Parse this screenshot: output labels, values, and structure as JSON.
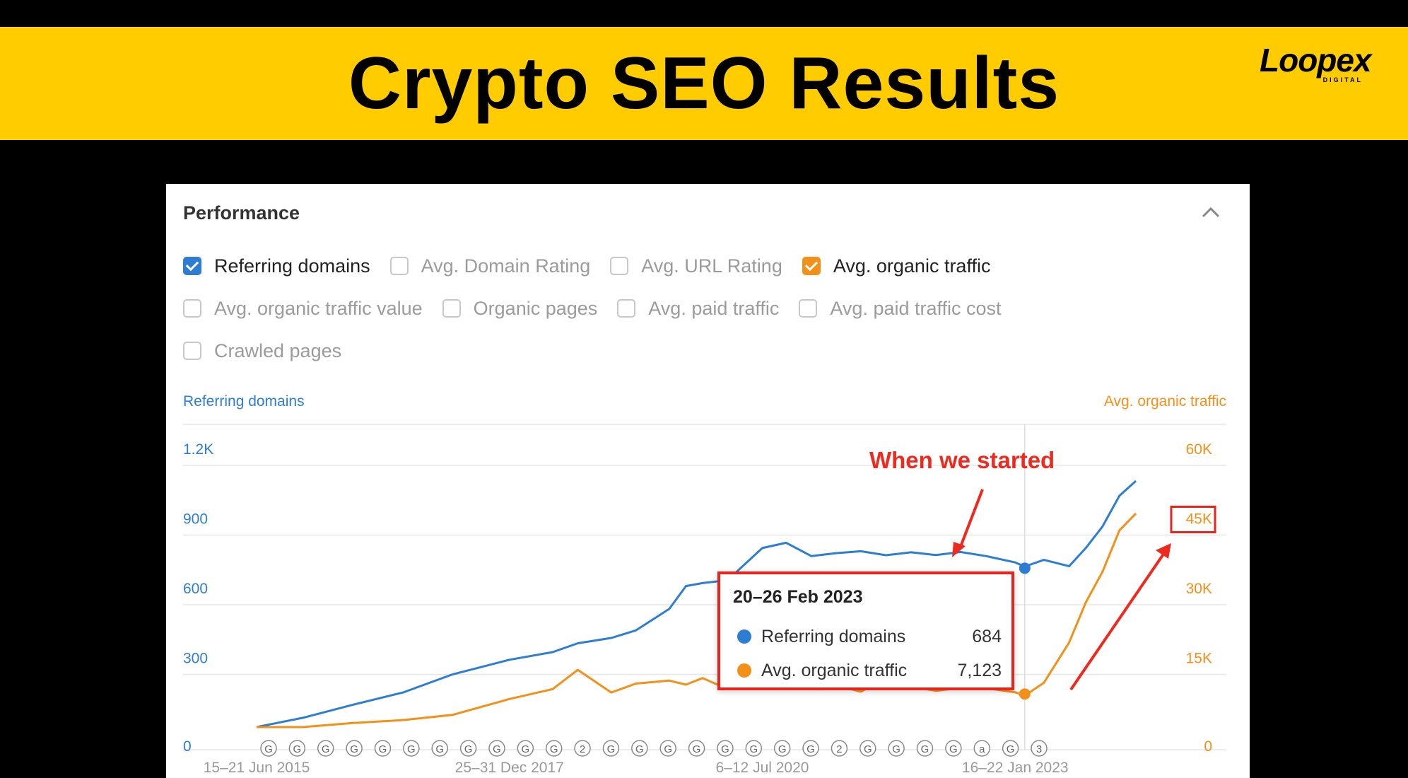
{
  "banner": {
    "title": "Crypto SEO Results",
    "logo_text": "Loopex",
    "logo_sub": "DIGITAL",
    "background": "#ffcc00"
  },
  "card": {
    "title": "Performance",
    "collapse_icon": "chevron-up-icon"
  },
  "filters": [
    [
      {
        "label": "Referring domains",
        "checked": true,
        "color": "#2d7dd2"
      },
      {
        "label": "Avg. Domain Rating",
        "checked": false
      },
      {
        "label": "Avg. URL Rating",
        "checked": false
      },
      {
        "label": "Avg. organic traffic",
        "checked": true,
        "color": "#f39019"
      }
    ],
    [
      {
        "label": "Avg. organic traffic value",
        "checked": false
      },
      {
        "label": "Organic pages",
        "checked": false
      },
      {
        "label": "Avg. paid traffic",
        "checked": false
      },
      {
        "label": "Avg. paid traffic cost",
        "checked": false
      }
    ],
    [
      {
        "label": "Crawled pages",
        "checked": false
      }
    ]
  ],
  "chart_data": {
    "type": "line",
    "grid": true,
    "x": [
      "2015-06-15",
      "2015-12-01",
      "2016-06-01",
      "2016-12-01",
      "2017-06-01",
      "2017-12-25",
      "2018-06-01",
      "2018-09-01",
      "2019-01-01",
      "2019-04-01",
      "2019-08-01",
      "2019-10-01",
      "2019-12-01",
      "2020-03-01",
      "2020-07-06",
      "2020-10-01",
      "2021-01-01",
      "2021-04-01",
      "2021-07-01",
      "2021-10-01",
      "2022-01-01",
      "2022-04-01",
      "2022-07-01",
      "2022-10-01",
      "2023-01-16",
      "2023-02-20",
      "2023-05-01",
      "2023-08-01",
      "2023-10-01",
      "2023-12-01",
      "2024-02-01",
      "2024-04-01"
    ],
    "xticks": [
      "15–21 Jun 2015",
      "25–31 Dec 2017",
      "6–12 Jul 2020",
      "16–22 Jan 2023"
    ],
    "left_axis": {
      "label": "Referring domains",
      "ticks": [
        "0",
        "300",
        "600",
        "900",
        "1.2K"
      ],
      "ylim": [
        0,
        1200
      ],
      "color": "#2d7dd2"
    },
    "right_axis": {
      "label": "Avg. organic traffic",
      "ticks": [
        "0",
        "15K",
        "30K",
        "45K",
        "60K"
      ],
      "ylim": [
        0,
        60000
      ],
      "color": "#f39019",
      "highlighted_tick": "45K"
    },
    "series": [
      {
        "name": "Referring domains",
        "axis": "left",
        "color": "#2d7dd2",
        "values": [
          0,
          40,
          100,
          160,
          220,
          290,
          330,
          350,
          380,
          420,
          520,
          600,
          620,
          640,
          760,
          790,
          740,
          760,
          750,
          740,
          760,
          730,
          750,
          740,
          720,
          684,
          720,
          700,
          760,
          860,
          1000,
          1060
        ]
      },
      {
        "name": "Avg. organic traffic",
        "axis": "right",
        "color": "#f39019",
        "values": [
          0,
          0,
          500,
          1500,
          3000,
          5500,
          8000,
          12500,
          8000,
          9000,
          10000,
          9500,
          10000,
          8000,
          9500,
          9000,
          10000,
          9000,
          8000,
          10000,
          8500,
          8000,
          9000,
          8000,
          7500,
          7123,
          9000,
          18000,
          27000,
          34000,
          42000,
          46000
        ]
      }
    ],
    "tooltip": {
      "date": "20–26 Feb 2023",
      "rows": [
        {
          "name": "Referring domains",
          "value": "684",
          "color": "#2d7dd2"
        },
        {
          "name": "Avg. organic traffic",
          "value": "7,123",
          "color": "#f39019"
        }
      ]
    },
    "annotation": "When we started",
    "update_markers": [
      "G",
      "G",
      "G",
      "G",
      "G",
      "G",
      "G",
      "G",
      "G",
      "G",
      "G",
      "2",
      "G",
      "G",
      "G",
      "G",
      "G",
      "G",
      "G",
      "G",
      "2",
      "G",
      "G",
      "G",
      "G",
      "a",
      "G",
      "3"
    ]
  }
}
